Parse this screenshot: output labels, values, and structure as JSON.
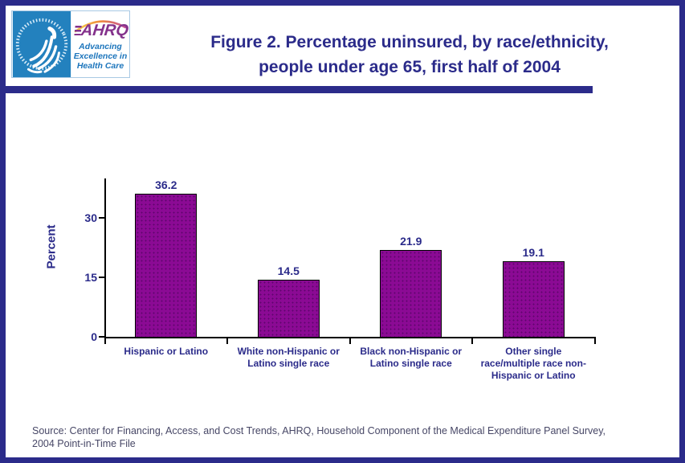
{
  "header": {
    "logo": {
      "hhs_seal_icon": "hhs-eagle-seal",
      "ahrq_acronym": "AHRQ",
      "ahrq_tagline_line1": "Advancing",
      "ahrq_tagline_line2": "Excellence in",
      "ahrq_tagline_line3": "Health Care"
    }
  },
  "chart_data": {
    "type": "bar",
    "title": "Figure 2. Percentage uninsured, by race/ethnicity, people under age 65, first half of 2004",
    "title_lines": {
      "line1": "Figure 2. Percentage uninsured, by race/ethnicity,",
      "line2": "people under age 65, first half of 2004"
    },
    "categories": [
      "Hispanic or Latino",
      "White non-Hispanic or Latino single race",
      "Black non-Hispanic or Latino single race",
      "Other single race/multiple race non-Hispanic or Latino"
    ],
    "category_label_lines": [
      [
        "Hispanic or Latino"
      ],
      [
        "White non-Hispanic or",
        "Latino single race"
      ],
      [
        "Black non-Hispanic or",
        "Latino single race"
      ],
      [
        "Other single",
        "race/multiple race non-",
        "Hispanic or Latino"
      ]
    ],
    "values": [
      36.2,
      14.5,
      21.9,
      19.1
    ],
    "xlabel": "",
    "ylabel": "Percent",
    "yticks": [
      0,
      15,
      30
    ],
    "ylim": [
      0,
      40
    ],
    "grid": false,
    "legend": false,
    "bar_color": "#8b0a94",
    "label_color": "#2b2b8a"
  },
  "footer": {
    "source_line1": "Source: Center for Financing, Access, and Cost Trends, AHRQ, Household Component of the Medical Expenditure Panel Survey,",
    "source_line2": "2004 Point-in-Time File"
  },
  "colors": {
    "accent_navy": "#2b2b8a",
    "bar_purple": "#8b0a94",
    "hhs_blue": "#2381be",
    "ahrq_purple": "#84328c",
    "tagline_blue": "#1c75bc",
    "source_text": "#474766"
  }
}
